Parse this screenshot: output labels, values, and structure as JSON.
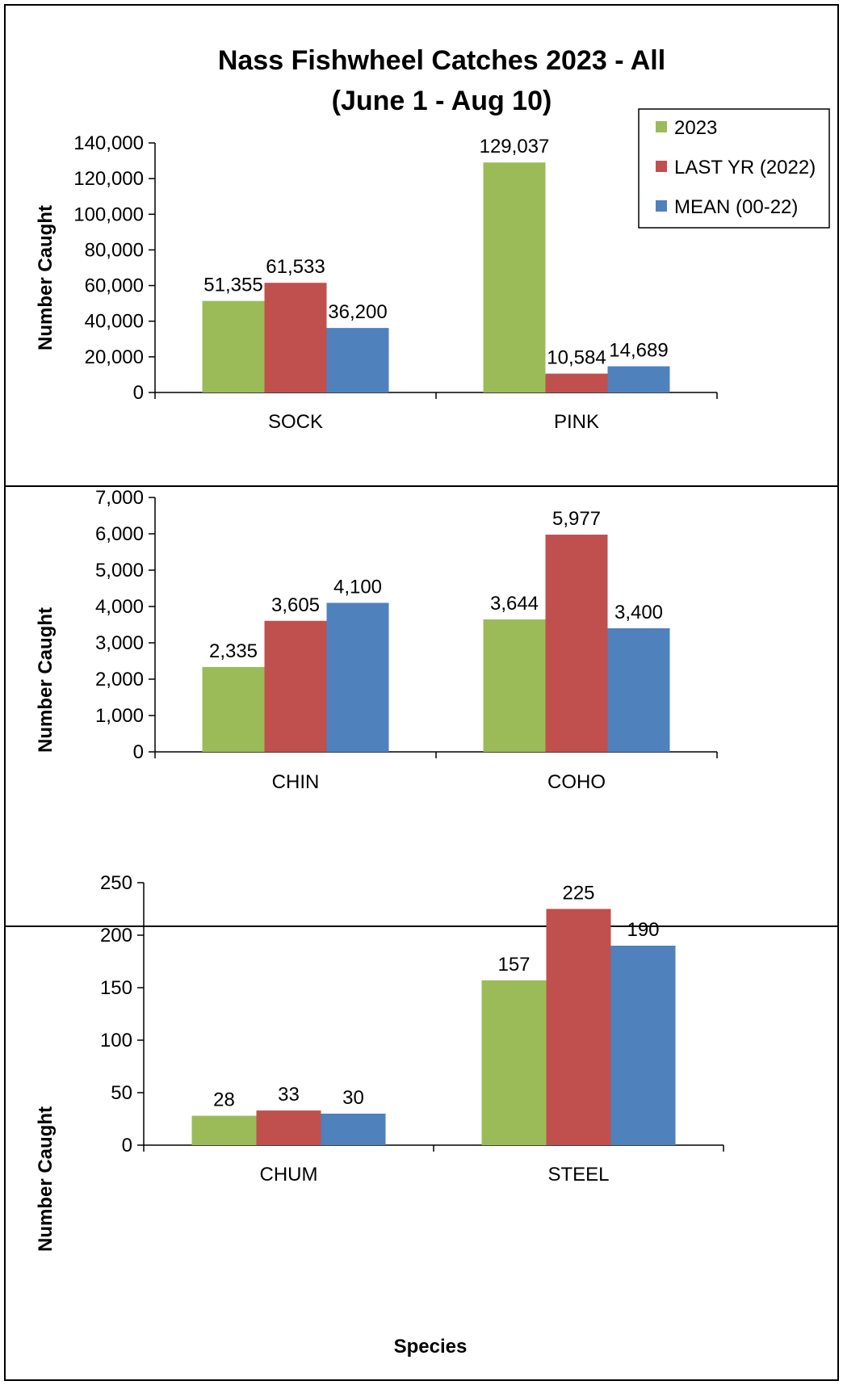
{
  "title_line1": "Nass Fishwheel Catches 2023 - All",
  "title_line2": "(June 1 - Aug 10)",
  "xlabel": "Species",
  "legend": [
    {
      "label": "2023",
      "color": "#9BBB59"
    },
    {
      "label": "LAST YR (2022)",
      "color": "#C0504D"
    },
    {
      "label": "MEAN (00-22)",
      "color": "#4F81BD"
    }
  ],
  "chart_data": [
    {
      "type": "bar",
      "categories": [
        "SOCK",
        "PINK"
      ],
      "ylabel": "Number Caught",
      "ylim": [
        0,
        140000
      ],
      "yticks": [
        0,
        20000,
        40000,
        60000,
        80000,
        100000,
        120000,
        140000
      ],
      "ytick_labels": [
        "0",
        "20,000",
        "40,000",
        "60,000",
        "80,000",
        "100,000",
        "120,000",
        "140,000"
      ],
      "series": [
        {
          "name": "2023",
          "values": [
            51355,
            129037
          ],
          "labels": [
            "51,355",
            "129,037"
          ]
        },
        {
          "name": "LAST YR (2022)",
          "values": [
            61533,
            10584
          ],
          "labels": [
            "61,533",
            "10,584"
          ]
        },
        {
          "name": "MEAN (00-22)",
          "values": [
            36200,
            14689
          ],
          "labels": [
            "36,200",
            "14,689"
          ]
        }
      ]
    },
    {
      "type": "bar",
      "categories": [
        "CHIN",
        "COHO"
      ],
      "ylabel": "Number Caught",
      "ylim": [
        0,
        7000
      ],
      "yticks": [
        0,
        1000,
        2000,
        3000,
        4000,
        5000,
        6000,
        7000
      ],
      "ytick_labels": [
        "0",
        "1,000",
        "2,000",
        "3,000",
        "4,000",
        "5,000",
        "6,000",
        "7,000"
      ],
      "series": [
        {
          "name": "2023",
          "values": [
            2335,
            3644
          ],
          "labels": [
            "2,335",
            "3,644"
          ]
        },
        {
          "name": "LAST YR (2022)",
          "values": [
            3605,
            5977
          ],
          "labels": [
            "3,605",
            "5,977"
          ]
        },
        {
          "name": "MEAN (00-22)",
          "values": [
            4100,
            3400
          ],
          "labels": [
            "4,100",
            "3,400"
          ]
        }
      ]
    },
    {
      "type": "bar",
      "categories": [
        "CHUM",
        "STEEL"
      ],
      "ylabel": "Number Caught",
      "ylim": [
        0,
        250
      ],
      "yticks": [
        0,
        50,
        100,
        150,
        200,
        250
      ],
      "ytick_labels": [
        "0",
        "50",
        "100",
        "150",
        "200",
        "250"
      ],
      "series": [
        {
          "name": "2023",
          "values": [
            28,
            157
          ],
          "labels": [
            "28",
            "157"
          ]
        },
        {
          "name": "LAST YR (2022)",
          "values": [
            33,
            225
          ],
          "labels": [
            "33",
            "225"
          ]
        },
        {
          "name": "MEAN (00-22)",
          "values": [
            30,
            190
          ],
          "labels": [
            "30",
            "190"
          ]
        }
      ]
    }
  ]
}
